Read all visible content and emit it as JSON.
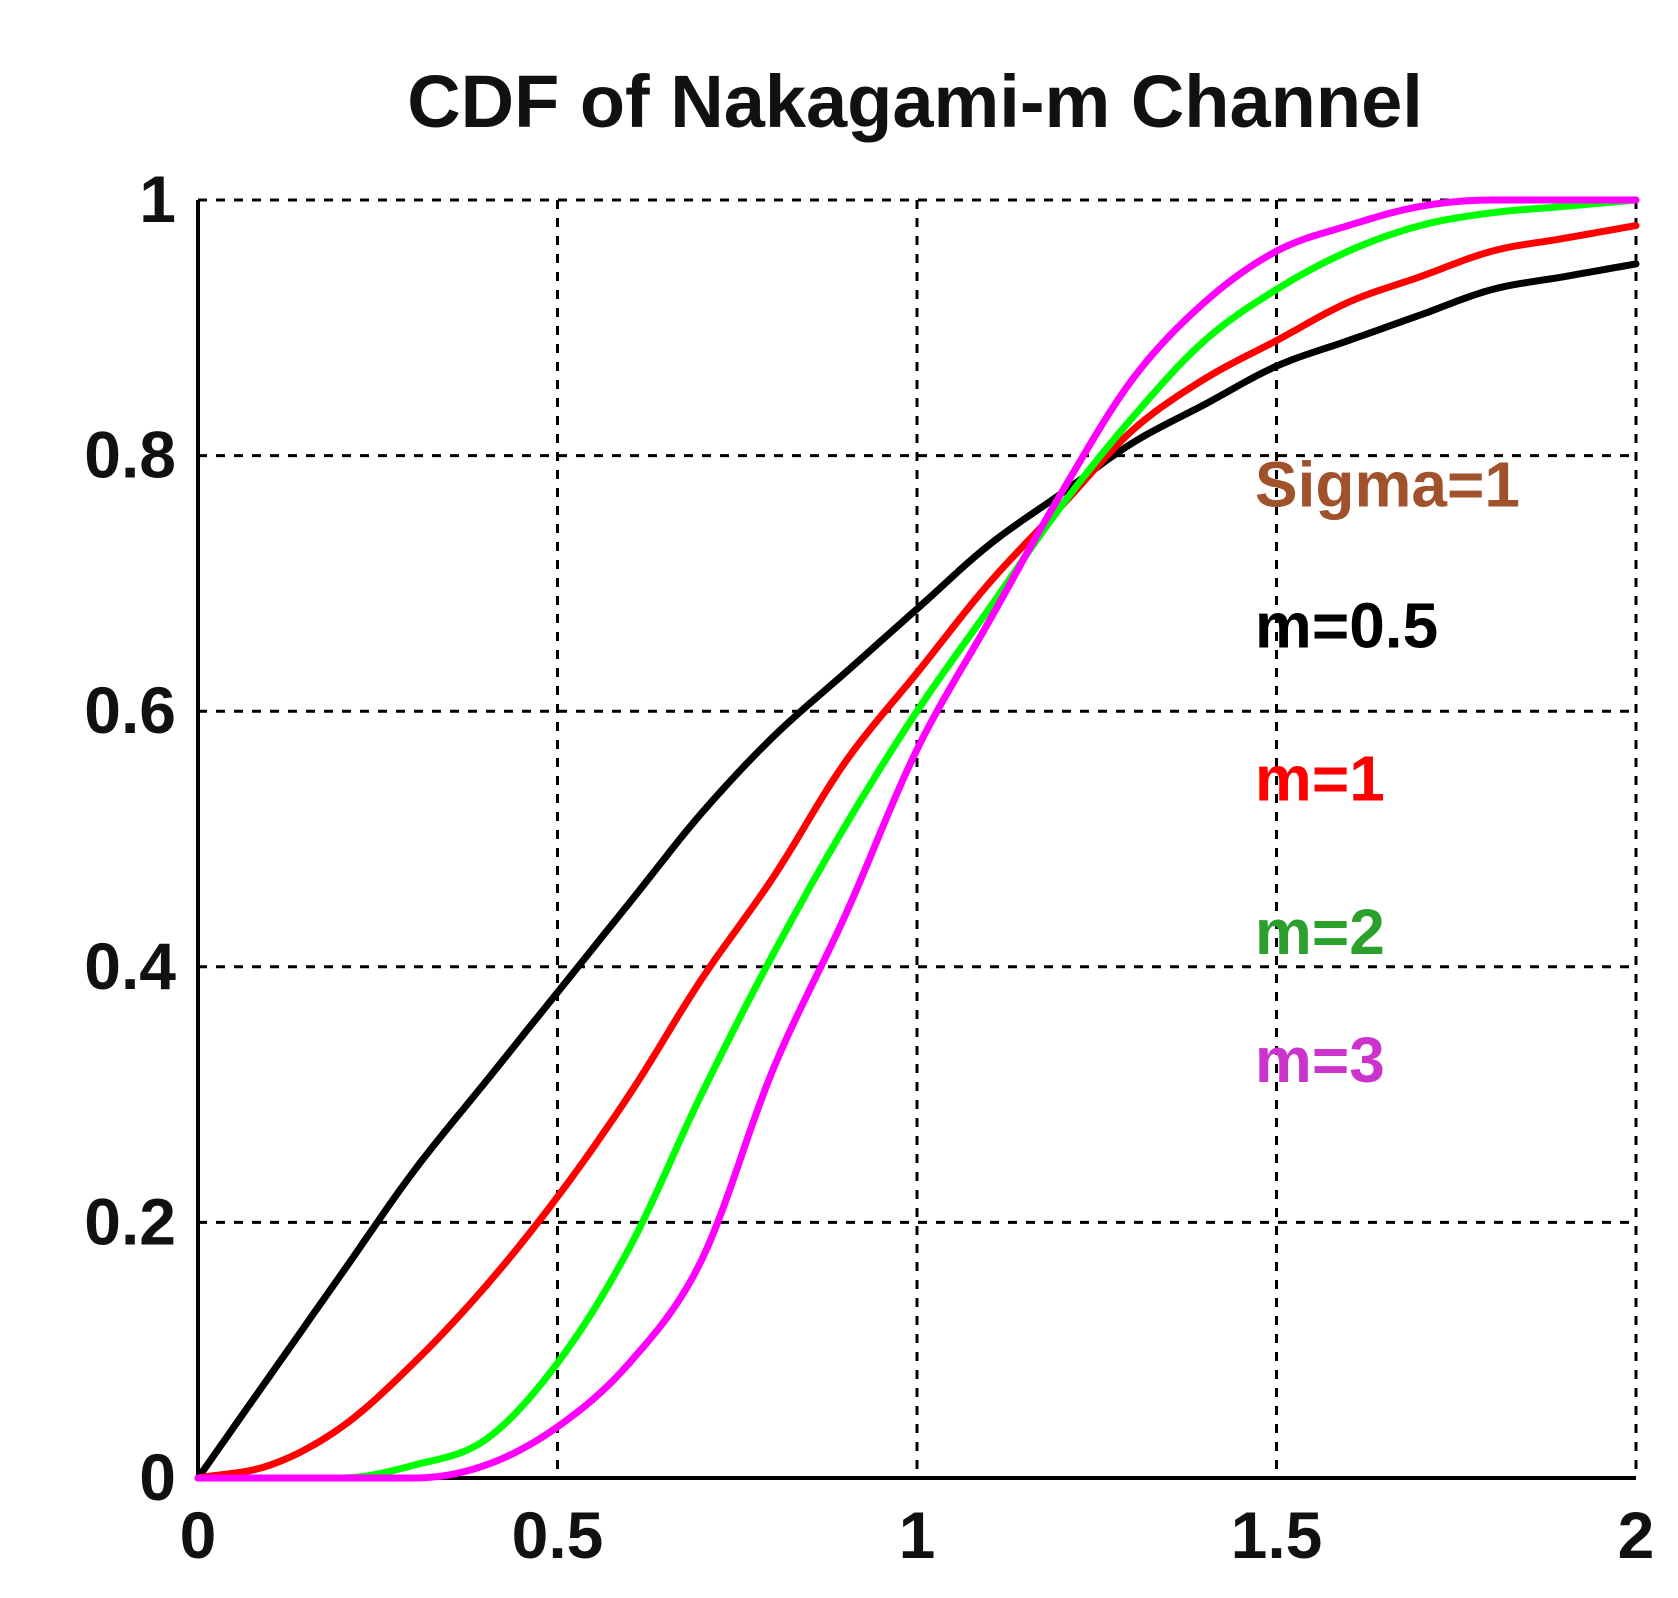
{
  "chart_data": {
    "type": "line",
    "title": "CDF of Nakagami-m Channel",
    "xlabel": "",
    "ylabel": "",
    "xlim": [
      0,
      2
    ],
    "ylim": [
      0,
      1
    ],
    "grid": true,
    "x_ticks": [
      {
        "value": 0,
        "label": "0"
      },
      {
        "value": 0.5,
        "label": "0.5"
      },
      {
        "value": 1,
        "label": "1"
      },
      {
        "value": 1.5,
        "label": "1.5"
      },
      {
        "value": 2,
        "label": "2"
      }
    ],
    "y_ticks": [
      {
        "value": 0,
        "label": "0"
      },
      {
        "value": 0.2,
        "label": "0.2"
      },
      {
        "value": 0.4,
        "label": "0.4"
      },
      {
        "value": 0.6,
        "label": "0.6"
      },
      {
        "value": 0.8,
        "label": "0.8"
      },
      {
        "value": 1,
        "label": "1"
      }
    ],
    "x": [
      0,
      0.1,
      0.2,
      0.3,
      0.4,
      0.5,
      0.6,
      0.7,
      0.8,
      0.9,
      1.0,
      1.1,
      1.2,
      1.3,
      1.4,
      1.5,
      1.6,
      1.7,
      1.8,
      1.9,
      2.0
    ],
    "series": [
      {
        "name": "m=0.5",
        "color": "#000000",
        "values": [
          0,
          0.08,
          0.16,
          0.24,
          0.31,
          0.38,
          0.45,
          0.52,
          0.58,
          0.63,
          0.68,
          0.73,
          0.77,
          0.81,
          0.84,
          0.87,
          0.89,
          0.91,
          0.93,
          0.94,
          0.95
        ]
      },
      {
        "name": "m=1",
        "color": "#ff0000",
        "values": [
          0,
          0.01,
          0.04,
          0.09,
          0.15,
          0.22,
          0.3,
          0.39,
          0.47,
          0.56,
          0.63,
          0.7,
          0.76,
          0.82,
          0.86,
          0.89,
          0.92,
          0.94,
          0.96,
          0.97,
          0.98
        ]
      },
      {
        "name": "m=2",
        "color": "#00ff00",
        "values": [
          0,
          0,
          0,
          0.01,
          0.03,
          0.09,
          0.18,
          0.3,
          0.41,
          0.51,
          0.6,
          0.68,
          0.76,
          0.83,
          0.89,
          0.93,
          0.96,
          0.98,
          0.99,
          0.995,
          1.0
        ]
      },
      {
        "name": "m=3",
        "color": "#ff00ff",
        "values": [
          0,
          0,
          0,
          0,
          0.01,
          0.04,
          0.09,
          0.17,
          0.32,
          0.44,
          0.57,
          0.67,
          0.77,
          0.86,
          0.92,
          0.96,
          0.98,
          0.995,
          1.0,
          1.0,
          1.0
        ]
      }
    ],
    "annotations": [
      {
        "text": "Sigma=1",
        "color": "#a0522d",
        "at_x": 1.47,
        "at_y": 0.76
      },
      {
        "text": "m=0.5",
        "color": "#000000",
        "at_x": 1.47,
        "at_y": 0.65
      },
      {
        "text": "m=1",
        "color": "#ff0000",
        "at_x": 1.47,
        "at_y": 0.53
      },
      {
        "text": "m=2",
        "color": "#2ca02c",
        "at_x": 1.47,
        "at_y": 0.41
      },
      {
        "text": "m=3",
        "color": "#cc33cc",
        "at_x": 1.47,
        "at_y": 0.31
      }
    ]
  }
}
